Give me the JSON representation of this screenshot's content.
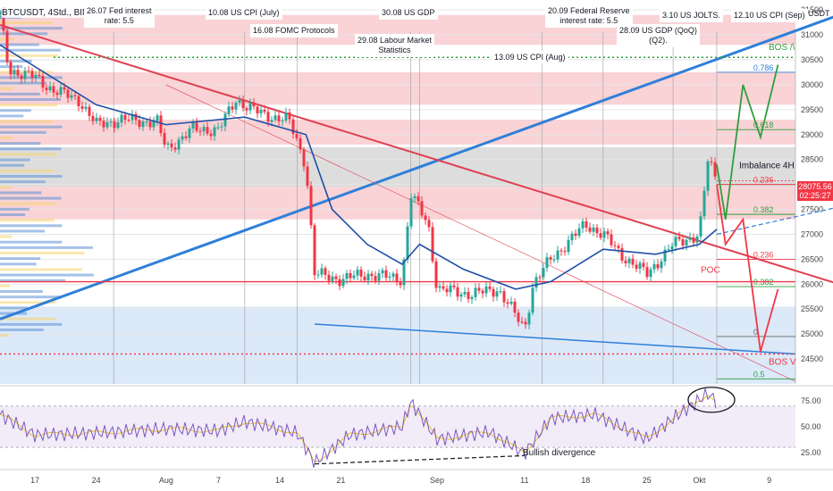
{
  "header": {
    "symbol": "BTCUSDT, 4Std., BINANCE"
  },
  "price_axis": {
    "unit": "USDT"
  },
  "price_tag": {
    "price": "28075.56",
    "timer": "02:25:27"
  },
  "colors": {
    "up": "#26a69a",
    "down": "#f23645",
    "red_zone": "#f7c4c8",
    "blue_zone": "#cfe2f7",
    "grey_zone": "#d2d2d2",
    "trend_blue": "#2f7fd9",
    "trend_red": "#e04050",
    "projection": "#2e9e3e",
    "rsi": "#7e57c2",
    "rsi_ma": "#e6c229"
  },
  "annotations": [
    {
      "id": "fed-jul",
      "text": "26.07 Fed interest\nrate: 5.5"
    },
    {
      "id": "cpi-jul",
      "text": "10.08 US CPI (July)"
    },
    {
      "id": "fomc",
      "text": "16.08 FOMC Protocols"
    },
    {
      "id": "gdp-aug",
      "text": "30.08 US GDP"
    },
    {
      "id": "labour",
      "text": "29.08 Labour Market\nStatistics"
    },
    {
      "id": "cpi-aug",
      "text": "13.09 US CPI (Aug)"
    },
    {
      "id": "fed-sep",
      "text": "20.09 Federal Reserve\ninterest rate: 5.5"
    },
    {
      "id": "gdp-q2",
      "text": "28.09 US GDP (QoQ)\n(Q2)."
    },
    {
      "id": "jolts",
      "text": "3.10 US JOLTS."
    },
    {
      "id": "cpi-sep",
      "text": "12.10 US CPI (Sep)"
    }
  ],
  "chart_data": [
    {
      "type": "candlestick",
      "title": "BTCUSDT, 4Std., BINANCE",
      "x_ticks": [
        "17",
        "24",
        "Aug",
        "7",
        "14",
        "21",
        "Sep",
        "11",
        "18",
        "25",
        "Okt",
        "9"
      ],
      "y_ticks": [
        24500,
        25000,
        25500,
        26000,
        26500,
        27000,
        27500,
        28000,
        28500,
        29000,
        29500,
        30000,
        30500,
        31000,
        31500
      ],
      "ylim": [
        24000,
        31700
      ],
      "price_path_points": [
        {
          "date": "Jul 13",
          "price": 31400
        },
        {
          "date": "Jul 14",
          "price": 30300
        },
        {
          "date": "Jul 17",
          "price": 30150
        },
        {
          "date": "Jul 19",
          "price": 29900
        },
        {
          "date": "Jul 22",
          "price": 29700
        },
        {
          "date": "Jul 24",
          "price": 29200
        },
        {
          "date": "Jul 27",
          "price": 29300
        },
        {
          "date": "Jul 31",
          "price": 29250
        },
        {
          "date": "Aug 1",
          "price": 28700
        },
        {
          "date": "Aug 4",
          "price": 29100
        },
        {
          "date": "Aug 7",
          "price": 29100
        },
        {
          "date": "Aug 9",
          "price": 29700
        },
        {
          "date": "Aug 12",
          "price": 29400
        },
        {
          "date": "Aug 15",
          "price": 29300
        },
        {
          "date": "Aug 17",
          "price": 28400
        },
        {
          "date": "Aug 18",
          "price": 26200
        },
        {
          "date": "Aug 21",
          "price": 26100
        },
        {
          "date": "Aug 24",
          "price": 26200
        },
        {
          "date": "Aug 28",
          "price": 26100
        },
        {
          "date": "Aug 29",
          "price": 27800
        },
        {
          "date": "Aug 31",
          "price": 27200
        },
        {
          "date": "Sep 1",
          "price": 25900
        },
        {
          "date": "Sep 5",
          "price": 25800
        },
        {
          "date": "Sep 8",
          "price": 25900
        },
        {
          "date": "Sep 11",
          "price": 25100
        },
        {
          "date": "Sep 12",
          "price": 26000
        },
        {
          "date": "Sep 14",
          "price": 26500
        },
        {
          "date": "Sep 18",
          "price": 27200
        },
        {
          "date": "Sep 20",
          "price": 27000
        },
        {
          "date": "Sep 22",
          "price": 26600
        },
        {
          "date": "Sep 25",
          "price": 26200
        },
        {
          "date": "Sep 28",
          "price": 26800
        },
        {
          "date": "Oct 1",
          "price": 27000
        },
        {
          "date": "Oct 2",
          "price": 28500
        },
        {
          "date": "Oct 3",
          "price": 28075
        }
      ],
      "levels": [
        {
          "label": "0.786",
          "price": 30250,
          "color": "#2f7fd9"
        },
        {
          "label": "0.618",
          "price": 29100,
          "color": "#2e9e3e"
        },
        {
          "label": "0.236",
          "price": 28000,
          "color": "#f23645"
        },
        {
          "label": "0.382",
          "price": 27400,
          "color": "#2e9e3e"
        },
        {
          "label": "0.236",
          "price": 26500,
          "color": "#f23645"
        },
        {
          "label": "0.382",
          "price": 25950,
          "color": "#2e9e3e"
        },
        {
          "label": "0",
          "price": 24950,
          "color": "#666666"
        },
        {
          "label": "0.5",
          "price": 24100,
          "color": "#2e9e3e"
        }
      ],
      "zones": [
        {
          "type": "resistance",
          "from": 30800,
          "to": 31400
        },
        {
          "type": "resistance",
          "from": 29600,
          "to": 30250
        },
        {
          "type": "resistance",
          "from": 28800,
          "to": 29300
        },
        {
          "type": "imbalance",
          "from": 27950,
          "to": 28750
        },
        {
          "type": "resistance",
          "from": 27300,
          "to": 27950
        },
        {
          "type": "support",
          "from": 24000,
          "to": 25550
        }
      ],
      "labels": {
        "imbalance": "Imbalance 4H",
        "poc": "POC",
        "bos_up": "BOS /\\",
        "bos_down": "BOS V"
      },
      "bos_up_level": 30550,
      "bos_down_level": 24600,
      "poc_level": 26050,
      "ma_path": [
        {
          "date": "Jul 13",
          "price": 30800
        },
        {
          "date": "Jul 24",
          "price": 29600
        },
        {
          "date": "Aug 1",
          "price": 29200
        },
        {
          "date": "Aug 10",
          "price": 29350
        },
        {
          "date": "Aug 17",
          "price": 29000
        },
        {
          "date": "Aug 20",
          "price": 27500
        },
        {
          "date": "Aug 24",
          "price": 26800
        },
        {
          "date": "Aug 28",
          "price": 26400
        },
        {
          "date": "Aug 30",
          "price": 26800
        },
        {
          "date": "Sep 4",
          "price": 26300
        },
        {
          "date": "Sep 10",
          "price": 25900
        },
        {
          "date": "Sep 14",
          "price": 26050
        },
        {
          "date": "Sep 20",
          "price": 26700
        },
        {
          "date": "Sep 26",
          "price": 26600
        },
        {
          "date": "Oct 1",
          "price": 26800
        },
        {
          "date": "Oct 3",
          "price": 27100
        }
      ],
      "projection_up": [
        {
          "date": "Oct 3",
          "price": 28400
        },
        {
          "date": "Oct 4",
          "price": 27300
        },
        {
          "date": "Oct 6",
          "price": 30000
        },
        {
          "date": "Oct 8",
          "price": 28950
        },
        {
          "date": "Oct 10",
          "price": 30400
        }
      ],
      "projection_down": [
        {
          "date": "Oct 3",
          "price": 28000
        },
        {
          "date": "Oct 4",
          "price": 26800
        },
        {
          "date": "Oct 6",
          "price": 27300
        },
        {
          "date": "Oct 8",
          "price": 24650
        },
        {
          "date": "Oct 10",
          "price": 25900
        }
      ]
    },
    {
      "type": "line",
      "name": "RSI",
      "y_ticks": [
        25,
        50,
        75
      ],
      "ylim": [
        12,
        88
      ],
      "bands": [
        30,
        70
      ],
      "divergence_label": "Bullish divergence",
      "rsi_points": [
        {
          "date": "Jul 13",
          "rsi": 62
        },
        {
          "date": "Jul 17",
          "rsi": 42
        },
        {
          "date": "Jul 24",
          "rsi": 44
        },
        {
          "date": "Aug 1",
          "rsi": 48
        },
        {
          "date": "Aug 7",
          "rsi": 46
        },
        {
          "date": "Aug 10",
          "rsi": 55
        },
        {
          "date": "Aug 16",
          "rsi": 44
        },
        {
          "date": "Aug 18",
          "rsi": 15
        },
        {
          "date": "Aug 22",
          "rsi": 42
        },
        {
          "date": "Aug 28",
          "rsi": 50
        },
        {
          "date": "Aug 29",
          "rsi": 74
        },
        {
          "date": "Sep 1",
          "rsi": 38
        },
        {
          "date": "Sep 7",
          "rsi": 45
        },
        {
          "date": "Sep 11",
          "rsi": 24
        },
        {
          "date": "Sep 14",
          "rsi": 58
        },
        {
          "date": "Sep 19",
          "rsi": 62
        },
        {
          "date": "Sep 25",
          "rsi": 38
        },
        {
          "date": "Sep 28",
          "rsi": 58
        },
        {
          "date": "Oct 2",
          "rsi": 82
        },
        {
          "date": "Oct 3",
          "rsi": 74
        }
      ]
    }
  ]
}
